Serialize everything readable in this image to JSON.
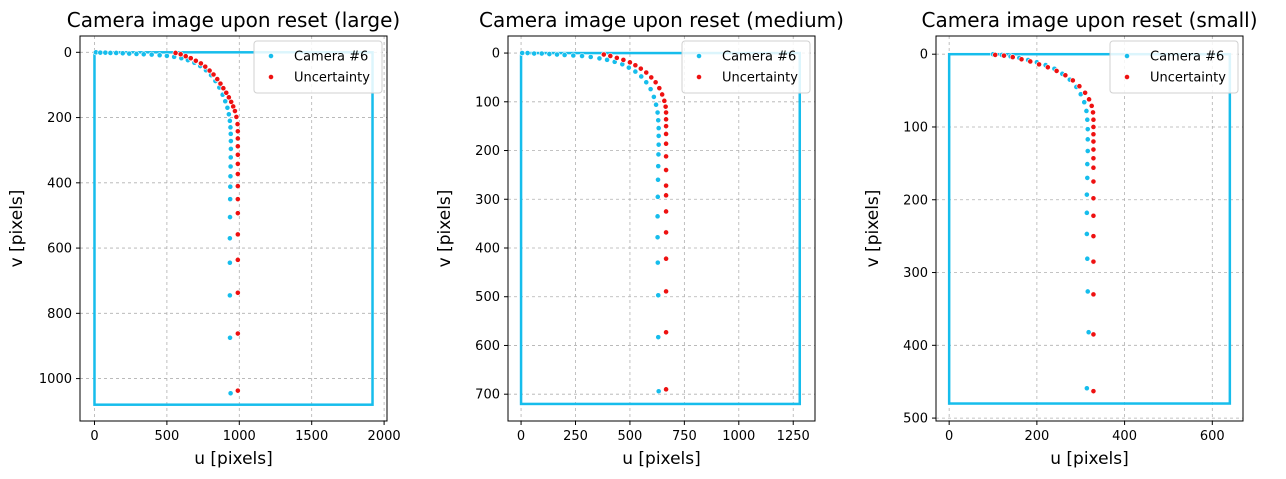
{
  "chart_data": [
    {
      "type": "scatter",
      "title": "Camera image upon reset (large)",
      "xlabel": "u [pixels]",
      "ylabel": "v [pixels]",
      "xlim": [
        -100,
        2020
      ],
      "ylim": [
        1130,
        -50
      ],
      "xticks": [
        0,
        500,
        1000,
        1500,
        2000
      ],
      "yticks": [
        0,
        200,
        400,
        600,
        800,
        1000
      ],
      "grid": true,
      "legend_position": "top-right",
      "frame": {
        "x0": 0,
        "y0": 0,
        "x1": 1920,
        "y1": 1080,
        "color": "#16bdec"
      },
      "series": [
        {
          "name": "Camera #6",
          "color": "#16bdec",
          "x": [
            10,
            40,
            75,
            110,
            150,
            195,
            240,
            290,
            340,
            395,
            450,
            500,
            550,
            600,
            645,
            690,
            730,
            770,
            805,
            835,
            862,
            885,
            903,
            918,
            928,
            935,
            939,
            941,
            942,
            942,
            941,
            940,
            939,
            938,
            937,
            936,
            935,
            935,
            935,
            936,
            938,
            940
          ],
          "y": [
            0,
            1,
            1,
            2,
            2,
            3,
            4,
            5,
            6,
            7,
            9,
            11,
            14,
            18,
            24,
            32,
            42,
            55,
            70,
            88,
            108,
            130,
            150,
            170,
            190,
            210,
            230,
            250,
            272,
            296,
            322,
            350,
            380,
            412,
            450,
            505,
            570,
            645,
            745,
            875,
            1045,
            1045
          ]
        },
        {
          "name": "Uncertainty",
          "color": "#ee1111",
          "x": [
            560,
            595,
            630,
            665,
            700,
            735,
            765,
            795,
            822,
            848,
            870,
            890,
            910,
            928,
            944,
            958,
            970,
            980,
            988,
            990,
            990,
            990,
            990,
            990,
            990,
            990,
            990,
            990,
            990,
            990,
            990,
            990
          ],
          "y": [
            2,
            6,
            12,
            18,
            26,
            34,
            44,
            56,
            68,
            82,
            96,
            110,
            124,
            138,
            152,
            166,
            180,
            198,
            220,
            242,
            264,
            288,
            314,
            342,
            373,
            410,
            450,
            493,
            558,
            636,
            737,
            862
          ]
        },
        {
          "name": "",
          "color": "#ee1111",
          "x": [
            990
          ],
          "y": [
            1037
          ]
        }
      ]
    },
    {
      "type": "scatter",
      "title": "Camera image upon reset (medium)",
      "xlabel": "u [pixels]",
      "ylabel": "v [pixels]",
      "xlim": [
        -60,
        1350
      ],
      "ylim": [
        755,
        -35
      ],
      "xticks": [
        0,
        250,
        500,
        750,
        1000,
        1250
      ],
      "yticks": [
        0,
        100,
        200,
        300,
        400,
        500,
        600,
        700
      ],
      "grid": true,
      "legend_position": "top-right",
      "frame": {
        "x0": 0,
        "y0": 0,
        "x1": 1280,
        "y1": 720,
        "color": "#16bdec"
      },
      "series": [
        {
          "name": "Camera #6",
          "color": "#16bdec",
          "x": [
            5,
            30,
            60,
            95,
            130,
            165,
            200,
            240,
            280,
            320,
            360,
            395,
            430,
            465,
            495,
            525,
            552,
            575,
            595,
            610,
            620,
            627,
            630,
            632,
            632,
            632,
            631,
            630,
            629,
            628,
            627,
            627,
            628,
            630
          ],
          "y": [
            0,
            0,
            1,
            1,
            2,
            3,
            4,
            5,
            6,
            8,
            11,
            14,
            18,
            23,
            30,
            38,
            48,
            60,
            74,
            90,
            106,
            122,
            138,
            154,
            170,
            188,
            208,
            232,
            260,
            295,
            335,
            378,
            430,
            497
          ],
          "extra_points": {
            "x": [
              630,
              632
            ],
            "y": [
              583,
              694
            ]
          }
        },
        {
          "name": "Uncertainty",
          "color": "#ee1111",
          "x": [
            380,
            410,
            440,
            470,
            500,
            525,
            550,
            575,
            598,
            618,
            635,
            648,
            658,
            664,
            666,
            666,
            666,
            666,
            666,
            666,
            666,
            666,
            666,
            666,
            666,
            666,
            666,
            666,
            666
          ],
          "y": [
            3,
            6,
            10,
            14,
            19,
            25,
            32,
            40,
            50,
            60,
            72,
            85,
            98,
            110,
            122,
            136,
            150,
            166,
            186,
            212,
            240,
            272,
            292,
            325,
            368,
            422,
            489,
            573,
            690
          ]
        }
      ]
    },
    {
      "type": "scatter",
      "title": "Camera image upon reset (small)",
      "xlabel": "u [pixels]",
      "ylabel": "v [pixels]",
      "xlim": [
        -30,
        670
      ],
      "ylim": [
        504,
        -25
      ],
      "xticks": [
        0,
        200,
        400,
        600
      ],
      "yticks": [
        0,
        100,
        200,
        300,
        400,
        500
      ],
      "grid": true,
      "legend_position": "top-right",
      "frame": {
        "x0": 0,
        "y0": 0,
        "x1": 640,
        "y1": 480,
        "color": "#16bdec"
      },
      "series": [
        {
          "name": "Camera #6",
          "color": "#16bdec",
          "x": [
            100,
            120,
            140,
            160,
            180,
            200,
            220,
            240,
            258,
            275,
            290,
            300,
            308,
            313,
            315,
            316,
            316,
            316,
            315,
            315,
            314,
            314,
            314,
            315,
            316,
            318
          ],
          "y": [
            0,
            1,
            3,
            5,
            8,
            11,
            15,
            20,
            27,
            35,
            45,
            55,
            66,
            78,
            90,
            103,
            117,
            133,
            151,
            170,
            193,
            218,
            247,
            281,
            326,
            382
          ],
          "extra_points": {
            "x": [
              314
            ],
            "y": [
              459
            ]
          }
        },
        {
          "name": "Uncertainty",
          "color": "#ee1111",
          "x": [
            105,
            125,
            145,
            165,
            185,
            205,
            225,
            245,
            265,
            282,
            297,
            310,
            319,
            325,
            328,
            329,
            329,
            329,
            329,
            329,
            329,
            329,
            329,
            329,
            329,
            329,
            329,
            329,
            329
          ],
          "y": [
            1,
            2,
            4,
            7,
            10,
            14,
            18,
            23,
            29,
            36,
            44,
            53,
            62,
            71,
            80,
            90,
            100,
            110,
            120,
            131,
            143,
            156,
            175,
            198,
            222,
            250,
            285,
            330,
            385
          ],
          "extra_points": {
            "x": [
              329
            ],
            "y": [
              463
            ]
          }
        }
      ]
    }
  ]
}
